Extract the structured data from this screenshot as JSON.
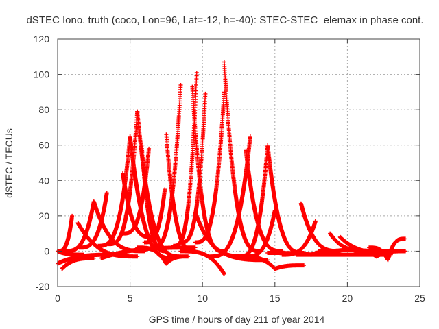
{
  "chart_data": {
    "type": "scatter",
    "title": "dSTEC Iono. truth (coco, Lon=96, Lat=-12, h=-40): STEC-STEC_elemax in phase cont.",
    "xlabel": "GPS time / hours of day 211 of year 2014",
    "ylabel": "dSTEC  / TECUs",
    "xlim": [
      0,
      25
    ],
    "ylim": [
      -20,
      120
    ],
    "xticks": [
      "0",
      "5",
      "10",
      "15",
      "20",
      "25"
    ],
    "yticks": [
      "-20",
      "0",
      "20",
      "40",
      "60",
      "80",
      "100",
      "120"
    ],
    "grid": true,
    "marker": "+",
    "color": "#ff0000",
    "arcs": [
      {
        "start": 0.0,
        "peak": 1.0,
        "end": 1.0,
        "peak_value": 20,
        "start_value": 0,
        "end_value": 20
      },
      {
        "start": 0.0,
        "peak": 0.0,
        "end": 1.8,
        "peak_value": 0,
        "start_value": 0,
        "end_value": -2
      },
      {
        "start": 0.0,
        "peak": 0.0,
        "end": 4.0,
        "peak_value": -7,
        "start_value": -7,
        "end_value": -2
      },
      {
        "start": 0.3,
        "peak": 0.3,
        "end": 2.5,
        "peak_value": -10,
        "start_value": -10,
        "end_value": -4
      },
      {
        "start": 0.5,
        "peak": 2.5,
        "end": 2.5,
        "peak_value": 28,
        "start_value": 0,
        "end_value": 28
      },
      {
        "start": 1.5,
        "peak": 3.4,
        "end": 3.4,
        "peak_value": 33,
        "start_value": 2,
        "end_value": 33
      },
      {
        "start": 1.4,
        "peak": 1.4,
        "end": 5.5,
        "peak_value": 16,
        "start_value": 16,
        "end_value": -3
      },
      {
        "start": 2.5,
        "peak": 2.5,
        "end": 6.0,
        "peak_value": 28,
        "start_value": 28,
        "end_value": 0
      },
      {
        "start": 3.0,
        "peak": 3.0,
        "end": 9.5,
        "peak_value": -4,
        "start_value": -4,
        "end_value": 2
      },
      {
        "start": 4.5,
        "peak": 4.5,
        "end": 6.5,
        "peak_value": 44,
        "start_value": 44,
        "end_value": 8
      },
      {
        "start": 2.8,
        "peak": 5.0,
        "end": 5.0,
        "peak_value": 65,
        "start_value": 3,
        "end_value": 65
      },
      {
        "start": 5.0,
        "peak": 5.0,
        "end": 8.0,
        "peak_value": 65,
        "start_value": 65,
        "end_value": -4
      },
      {
        "start": 3.5,
        "peak": 5.5,
        "end": 5.5,
        "peak_value": 79,
        "start_value": 4,
        "end_value": 79
      },
      {
        "start": 5.5,
        "peak": 5.5,
        "end": 8.5,
        "peak_value": 79,
        "start_value": 79,
        "end_value": -3
      },
      {
        "start": 5.8,
        "peak": 5.8,
        "end": 7.5,
        "peak_value": 60,
        "start_value": 60,
        "end_value": 0
      },
      {
        "start": 4.5,
        "peak": 6.3,
        "end": 6.3,
        "peak_value": 58,
        "start_value": 10,
        "end_value": 58
      },
      {
        "start": 6.0,
        "peak": 7.4,
        "end": 7.4,
        "peak_value": 35,
        "start_value": 5,
        "end_value": 35
      },
      {
        "start": 5.5,
        "peak": 7.5,
        "end": 9.0,
        "peak_value": -7,
        "start_value": 2,
        "end_value": -3
      },
      {
        "start": 7.5,
        "peak": 7.5,
        "end": 9.5,
        "peak_value": 66,
        "start_value": 66,
        "end_value": 0
      },
      {
        "start": 6.5,
        "peak": 8.5,
        "end": 8.5,
        "peak_value": 94,
        "start_value": 2,
        "end_value": 94
      },
      {
        "start": 8.0,
        "peak": 9.6,
        "end": 9.6,
        "peak_value": 101,
        "start_value": 3,
        "end_value": 101
      },
      {
        "start": 9.3,
        "peak": 9.3,
        "end": 11.5,
        "peak_value": 93,
        "start_value": 93,
        "end_value": 0
      },
      {
        "start": 8.5,
        "peak": 10.2,
        "end": 10.2,
        "peak_value": 89,
        "start_value": 5,
        "end_value": 89
      },
      {
        "start": 8.5,
        "peak": 11.5,
        "end": 11.5,
        "peak_value": -13,
        "start_value": 0,
        "end_value": -13
      },
      {
        "start": 9.5,
        "peak": 9.5,
        "end": 13.0,
        "peak_value": 22,
        "start_value": 22,
        "end_value": -3
      },
      {
        "start": 9.5,
        "peak": 11.5,
        "end": 11.5,
        "peak_value": 90,
        "start_value": 5,
        "end_value": 90
      },
      {
        "start": 11.5,
        "peak": 11.5,
        "end": 14.0,
        "peak_value": 107,
        "start_value": 107,
        "end_value": 0
      },
      {
        "start": 11.0,
        "peak": 11.0,
        "end": 14.5,
        "peak_value": 1,
        "start_value": 1,
        "end_value": -5
      },
      {
        "start": 10.5,
        "peak": 13.3,
        "end": 13.3,
        "peak_value": 65,
        "start_value": -3,
        "end_value": 65
      },
      {
        "start": 13.0,
        "peak": 13.0,
        "end": 15.5,
        "peak_value": 57,
        "start_value": 57,
        "end_value": 0
      },
      {
        "start": 12.5,
        "peak": 14.5,
        "end": 14.5,
        "peak_value": 60,
        "start_value": -3,
        "end_value": 60
      },
      {
        "start": 14.5,
        "peak": 14.5,
        "end": 17.0,
        "peak_value": 60,
        "start_value": 60,
        "end_value": -1
      },
      {
        "start": 13.0,
        "peak": 15.0,
        "end": 15.0,
        "peak_value": 23,
        "start_value": -3,
        "end_value": 23
      },
      {
        "start": 12.5,
        "peak": 15.0,
        "end": 17.0,
        "peak_value": -10,
        "start_value": -3,
        "end_value": -8
      },
      {
        "start": 14.5,
        "peak": 17.5,
        "end": 19.5,
        "peak_value": -2,
        "start_value": -1,
        "end_value": 0
      },
      {
        "start": 15.5,
        "peak": 17.8,
        "end": 17.8,
        "peak_value": 17,
        "start_value": -2,
        "end_value": 17
      },
      {
        "start": 16.8,
        "peak": 16.8,
        "end": 19.5,
        "peak_value": 27,
        "start_value": 27,
        "end_value": 0
      },
      {
        "start": 18.8,
        "peak": 18.8,
        "end": 21.5,
        "peak_value": 10,
        "start_value": 10,
        "end_value": 0
      },
      {
        "start": 19.5,
        "peak": 19.5,
        "end": 23.0,
        "peak_value": 8,
        "start_value": 8,
        "end_value": -1
      },
      {
        "start": 16.5,
        "peak": 20.0,
        "end": 23.0,
        "peak_value": -2,
        "start_value": -2,
        "end_value": -2
      },
      {
        "start": 18.0,
        "peak": 20.0,
        "end": 24.0,
        "peak_value": 1,
        "start_value": 0,
        "end_value": 0
      },
      {
        "start": 21.5,
        "peak": 22.8,
        "end": 24.0,
        "peak_value": -5,
        "start_value": 2,
        "end_value": 7
      },
      {
        "start": 20.5,
        "peak": 22.0,
        "end": 24.0,
        "peak_value": -3,
        "start_value": 0,
        "end_value": 0
      }
    ]
  }
}
